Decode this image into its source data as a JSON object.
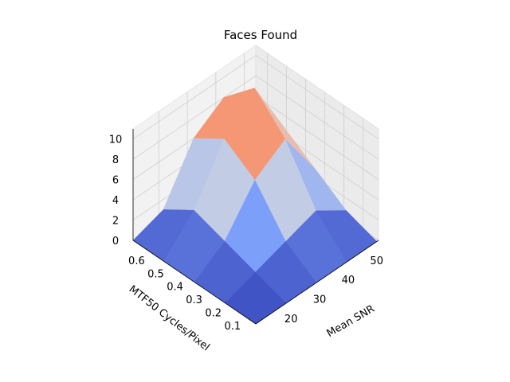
{
  "chart_data": {
    "type": "surface",
    "title": "Faces Found",
    "xlabel": "Mean SNR",
    "ylabel": "MTF50 Cycles/Pixel",
    "zlabel": "",
    "x_ticks": [
      20,
      30,
      40,
      50
    ],
    "y_ticks": [
      0.1,
      0.2,
      0.3,
      0.4,
      0.5,
      0.6
    ],
    "z_ticks": [
      0,
      2,
      4,
      6,
      8,
      10
    ],
    "xlim": [
      11,
      54
    ],
    "ylim": [
      0.02,
      0.66
    ],
    "zlim": [
      0,
      11
    ],
    "colormap": "coolwarm",
    "colormap_endpoints": [
      "#3b4cc0",
      "#b40426"
    ],
    "x": [
      11,
      21.6,
      32.2,
      42.8,
      53.4
    ],
    "y": [
      0.02,
      0.18,
      0.34,
      0.5,
      0.66
    ],
    "z": [
      [
        0,
        0,
        0,
        0,
        0
      ],
      [
        0,
        1,
        2,
        3,
        1
      ],
      [
        0,
        2,
        6,
        8,
        3
      ],
      [
        0,
        3,
        8,
        11,
        5
      ],
      [
        0,
        1,
        6,
        8,
        1
      ]
    ],
    "grid": true
  }
}
